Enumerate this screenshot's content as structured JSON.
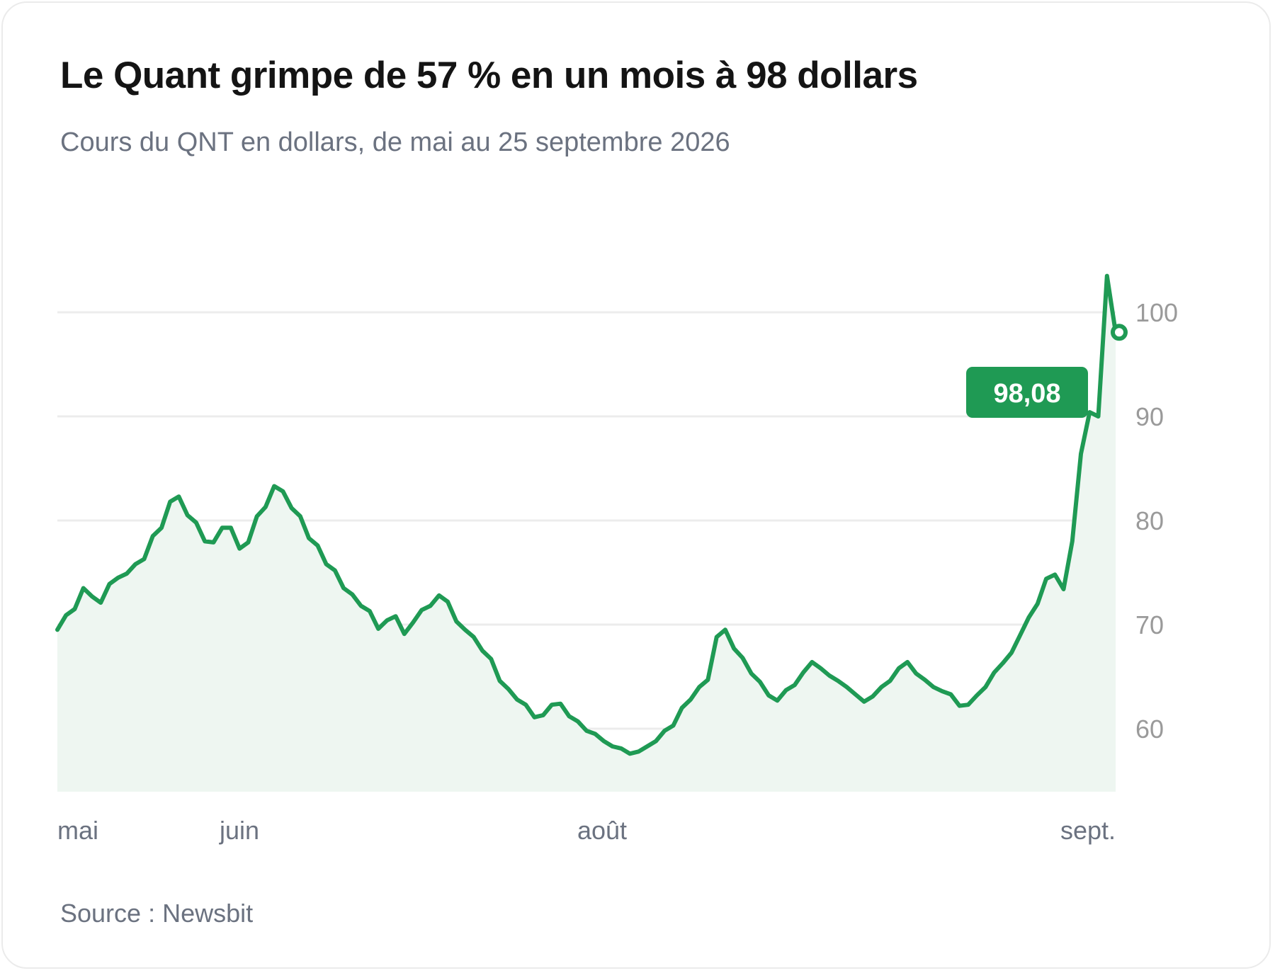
{
  "title": "Le Quant grimpe de 57 % en un mois à 98 dollars",
  "subtitle": "Cours du QNT en dollars, de mai au 25 septembre 2026",
  "source": "Source : Newsbit",
  "colors": {
    "line": "#1f9a54",
    "area": "#eef6f1",
    "grid": "#ececec",
    "tick": "#9a9a9a",
    "label_bg": "#1f9a54"
  },
  "chart_data": {
    "type": "area",
    "title": "Le Quant grimpe de 57 % en un mois à 98 dollars",
    "subtitle": "Cours du QNT en dollars, de mai au 25 septembre 2026",
    "xlabel": "",
    "ylabel": "",
    "x_ticks": [
      "mai",
      "juin",
      "août",
      "sept."
    ],
    "y_ticks": [
      60,
      70,
      80,
      90,
      100
    ],
    "ylim": [
      54,
      100
    ],
    "y_axis_side": "right",
    "grid": true,
    "last_value_label": "98,08",
    "series": [
      {
        "values": [
          69.5,
          70.9,
          71.5,
          73.5,
          72.7,
          72.1,
          73.9,
          74.5,
          74.9,
          75.8,
          76.3,
          78.5,
          79.3,
          81.8,
          82.3,
          80.5,
          79.8,
          78.0,
          77.9,
          79.3,
          79.3,
          77.3,
          77.9,
          80.4,
          81.3,
          83.3,
          82.8,
          81.2,
          80.4,
          78.3,
          77.6,
          75.8,
          75.2,
          73.5,
          72.9,
          71.8,
          71.3,
          69.6,
          70.4,
          70.8,
          69.1,
          70.2,
          71.4,
          71.8,
          72.8,
          72.2,
          70.3,
          69.5,
          68.8,
          67.5,
          66.7,
          64.6,
          63.8,
          62.8,
          62.3,
          61.1,
          61.3,
          62.3,
          62.4,
          61.2,
          60.7,
          59.8,
          59.5,
          58.8,
          58.3,
          58.1,
          57.6,
          57.8,
          58.3,
          58.8,
          59.8,
          60.3,
          62.0,
          62.8,
          64.0,
          64.7,
          68.8,
          69.5,
          67.7,
          66.8,
          65.3,
          64.5,
          63.2,
          62.7,
          63.7,
          64.2,
          65.4,
          66.4,
          65.8,
          65.1,
          64.6,
          64.0,
          63.3,
          62.6,
          63.1,
          64.0,
          64.6,
          65.8,
          66.4,
          65.3,
          64.7,
          64.0,
          63.6,
          63.3,
          62.2,
          62.3,
          63.2,
          64.0,
          65.4,
          66.3,
          67.3,
          69.0,
          70.7,
          72.0,
          74.4,
          74.8,
          73.4,
          78.0,
          86.4,
          90.4,
          90.0,
          103.5,
          98.08
        ]
      }
    ]
  }
}
